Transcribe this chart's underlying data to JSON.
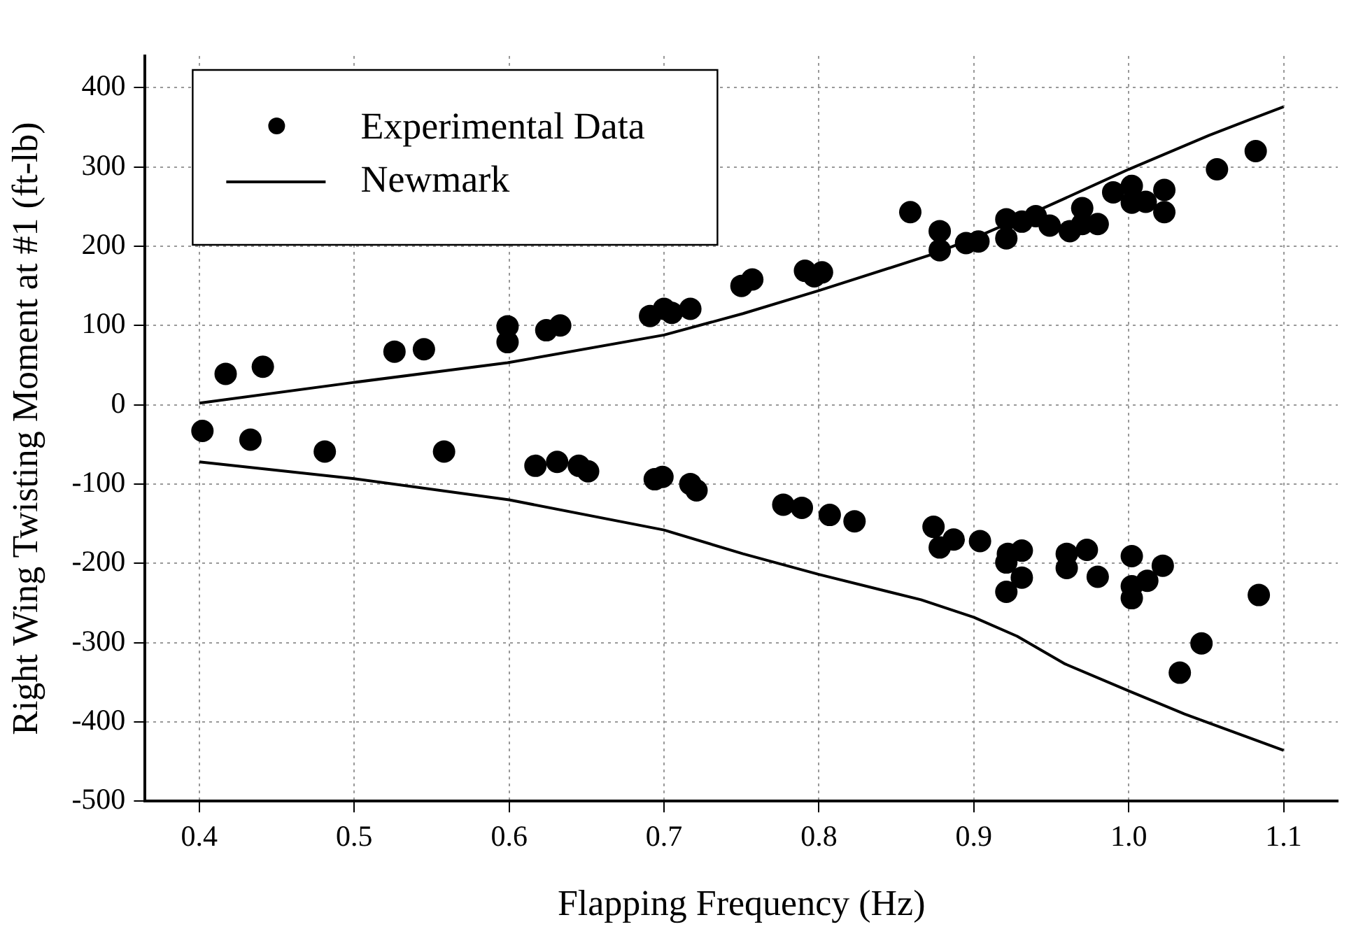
{
  "chart_data": {
    "type": "scatter",
    "xlabel": "Flapping Frequency (Hz)",
    "ylabel": "Right Wing Twisting Moment at #1 (ft-lb)",
    "xlim": [
      0.365,
      1.135
    ],
    "ylim": [
      -500,
      440
    ],
    "xticks": [
      0.4,
      0.5,
      0.6,
      0.7,
      0.8,
      0.9,
      {
        "value": 1.0,
        "label": "1.0"
      },
      1.1
    ],
    "yticks": [
      -500,
      -400,
      -300,
      -200,
      -100,
      0,
      100,
      200,
      300,
      400
    ],
    "grid": true,
    "legend": "top left",
    "series": [
      {
        "name": "Experimental Data",
        "marker": "circle",
        "color": "#000000",
        "x": [
          0.417,
          0.441,
          0.526,
          0.545,
          0.599,
          0.599,
          0.624,
          0.633,
          0.691,
          0.7,
          0.705,
          0.717,
          0.75,
          0.757,
          0.791,
          0.797,
          0.802,
          0.859,
          0.878,
          0.878,
          0.895,
          0.903,
          0.921,
          0.921,
          0.931,
          0.94,
          0.949,
          0.962,
          0.97,
          0.97,
          0.98,
          0.99,
          1.002,
          1.002,
          1.011,
          1.023,
          1.023,
          1.057,
          1.082,
          0.402,
          0.433,
          0.481,
          0.558,
          0.617,
          0.631,
          0.645,
          0.651,
          0.694,
          0.699,
          0.717,
          0.721,
          0.777,
          0.789,
          0.807,
          0.823,
          0.874,
          0.878,
          0.887,
          0.904,
          0.922,
          0.921,
          0.931,
          0.931,
          0.921,
          0.96,
          0.96,
          0.973,
          0.98,
          1.002,
          1.002,
          1.002,
          1.012,
          1.022,
          1.033,
          1.047,
          1.084
        ],
        "values": [
          39,
          48,
          67,
          70,
          99,
          79,
          94,
          100,
          112,
          121,
          116,
          121,
          150,
          158,
          169,
          162,
          167,
          243,
          219,
          195,
          204,
          206,
          234,
          210,
          231,
          238,
          226,
          219,
          248,
          228,
          228,
          268,
          276,
          255,
          256,
          271,
          243,
          297,
          320,
          -33,
          -44,
          -59,
          -59,
          -77,
          -72,
          -77,
          -84,
          -94,
          -91,
          -100,
          -108,
          -126,
          -130,
          -139,
          -147,
          -154,
          -180,
          -170,
          -172,
          -188,
          -199,
          -184,
          -218,
          -236,
          -188,
          -206,
          -183,
          -217,
          -191,
          -229,
          -244,
          -222,
          -203,
          -338,
          -301,
          -240
        ]
      },
      {
        "name": "Newmark",
        "type": "line",
        "marker": "none",
        "line_style": "solid",
        "color": "#000000",
        "x": [
          0.4,
          0.499,
          0.599,
          0.7,
          0.751,
          0.8,
          0.872,
          0.9,
          0.946,
          1.0,
          1.052,
          1.1,
          null,
          0.4,
          0.499,
          0.6,
          0.7,
          0.751,
          0.8,
          0.866,
          0.9,
          0.928,
          0.959,
          1.0,
          1.036,
          1.1
        ],
        "values": [
          2,
          28,
          53,
          88,
          115,
          144,
          189,
          210,
          249,
          297,
          340,
          376,
          null,
          -72,
          -93,
          -120,
          -158,
          -188,
          -214,
          -246,
          -268,
          -292,
          -327,
          -361,
          -390,
          -436
        ]
      }
    ]
  }
}
